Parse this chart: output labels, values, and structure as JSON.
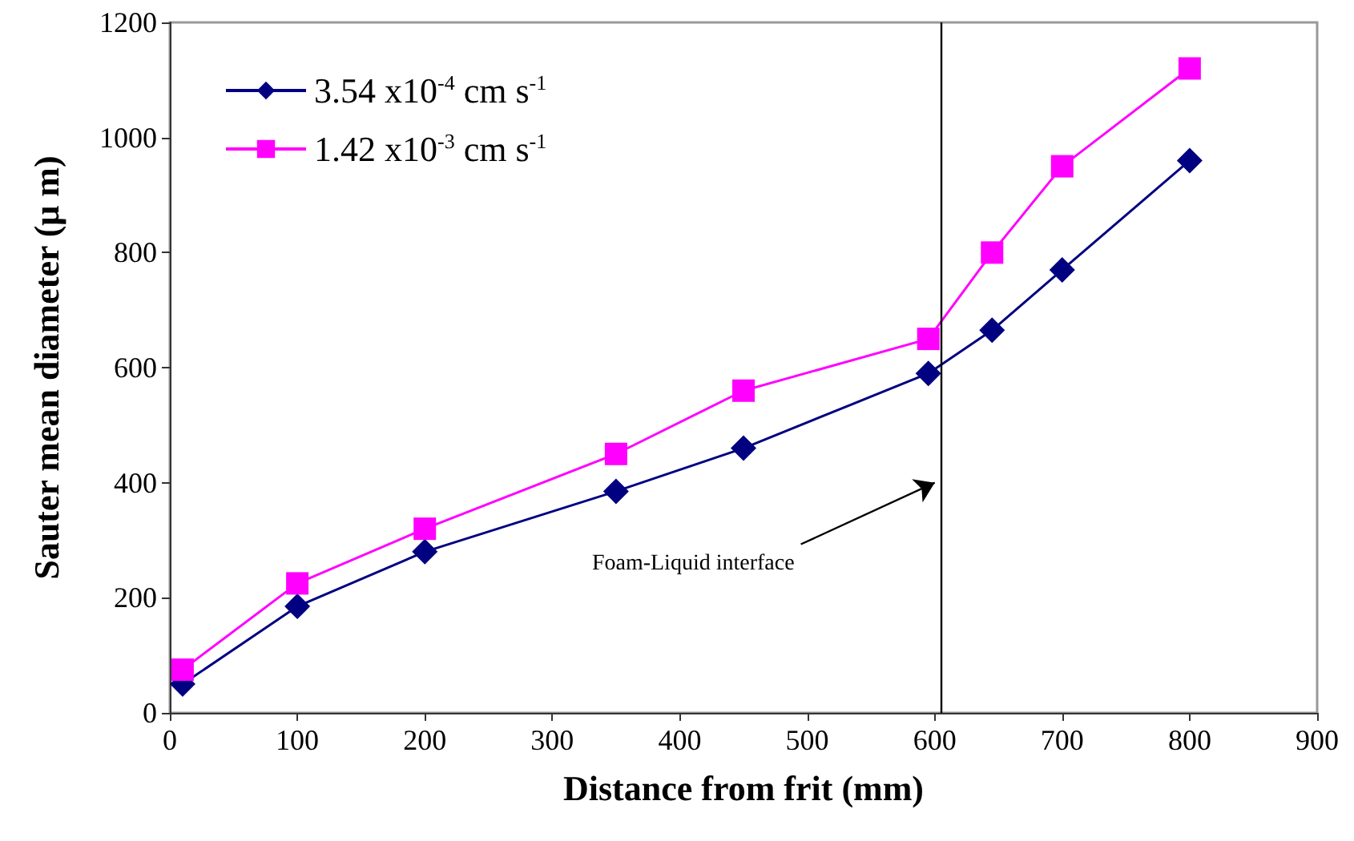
{
  "chart_data": {
    "type": "line",
    "xlabel": "Distance from frit (mm)",
    "ylabel": "Sauter mean diameter (μ m)",
    "xlim": [
      0,
      900
    ],
    "xticks": [
      0,
      100,
      200,
      300,
      400,
      500,
      600,
      700,
      800,
      900
    ],
    "ylim": [
      0,
      1200
    ],
    "yticks": [
      0,
      200,
      400,
      600,
      800,
      1000,
      1200
    ],
    "grid": false,
    "legend": "top left",
    "series": [
      {
        "name": "3.54 x10$^{-4}$ cm s$^{-1}$",
        "color": "#000080",
        "marker": "diamond",
        "x": [
          10,
          100,
          200,
          350,
          450,
          595,
          645,
          700,
          800
        ],
        "values": [
          50,
          185,
          280,
          385,
          460,
          590,
          665,
          770,
          960
        ]
      },
      {
        "name": "1.42 x10$^{-3}$ cm s$^{-1}$",
        "color": "#ff00ff",
        "marker": "square",
        "x": [
          10,
          100,
          200,
          350,
          450,
          595,
          645,
          700,
          800
        ],
        "values": [
          75,
          225,
          320,
          450,
          560,
          650,
          800,
          950,
          1120
        ]
      }
    ],
    "ref_lines": [
      {
        "axis": "x",
        "value": 605,
        "color": "#000000"
      }
    ],
    "annotations": [
      {
        "text": "Foam-Liquid interface",
        "x": 600,
        "y": 400
      }
    ]
  }
}
